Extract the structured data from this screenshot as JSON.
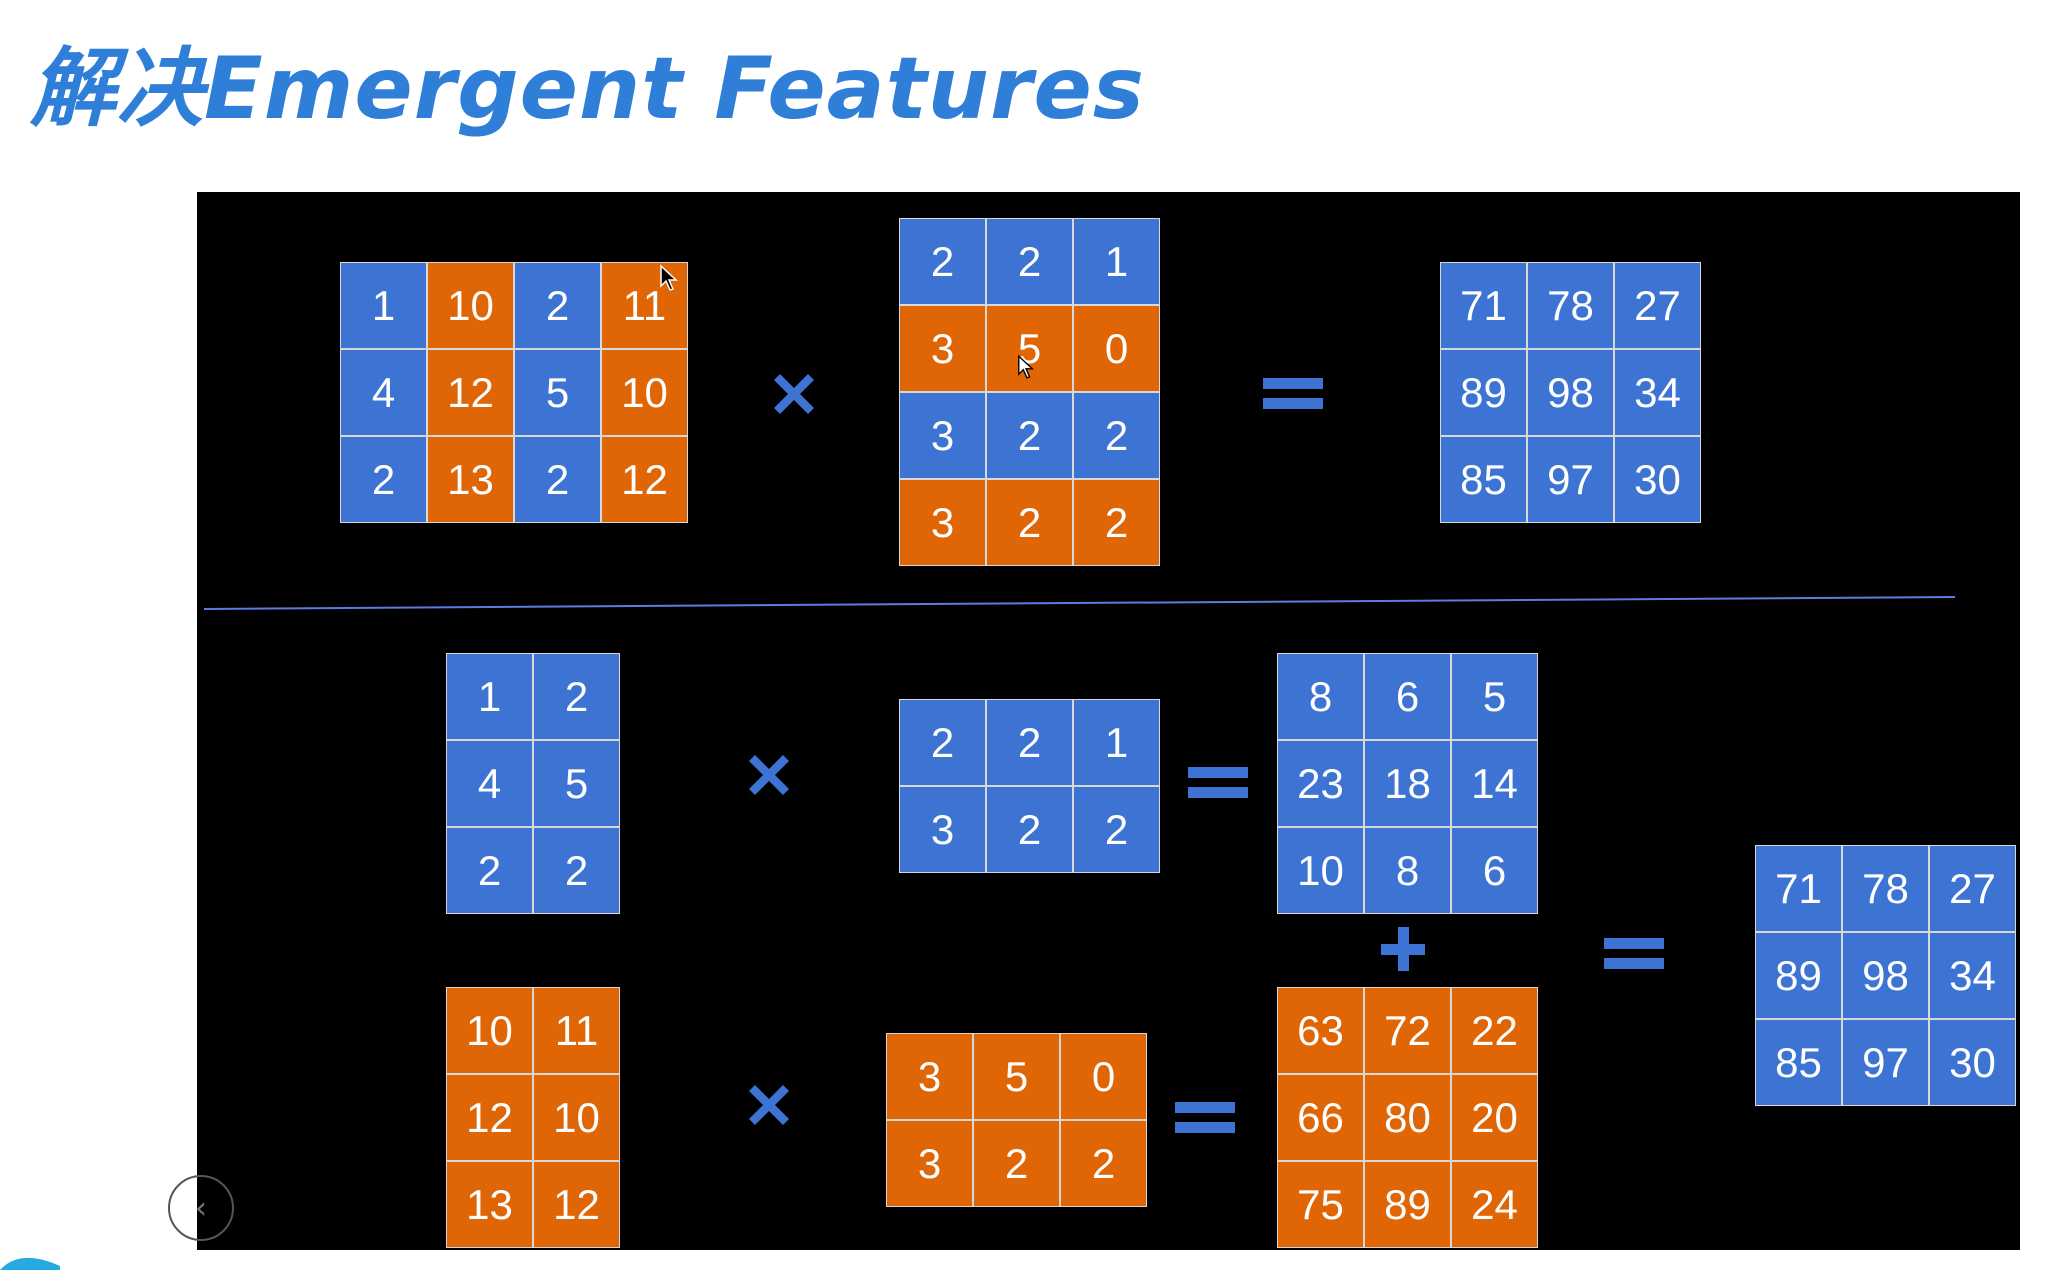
{
  "title": "解决Emergent Features",
  "colors": {
    "blue": "#3d74d4",
    "orange": "#df6505",
    "title": "#2f7fd9",
    "background": "#000000"
  },
  "top_row": {
    "input": {
      "cells": [
        [
          1,
          10,
          2,
          11
        ],
        [
          4,
          12,
          5,
          10
        ],
        [
          2,
          13,
          2,
          12
        ]
      ],
      "colors": [
        [
          "blue",
          "orange",
          "blue",
          "orange"
        ],
        [
          "blue",
          "orange",
          "blue",
          "orange"
        ],
        [
          "blue",
          "orange",
          "blue",
          "orange"
        ]
      ]
    },
    "weight": {
      "cells": [
        [
          2,
          2,
          1
        ],
        [
          3,
          5,
          0
        ],
        [
          3,
          2,
          2
        ],
        [
          3,
          2,
          2
        ]
      ],
      "colors": [
        [
          "blue",
          "blue",
          "blue"
        ],
        [
          "orange",
          "orange",
          "orange"
        ],
        [
          "blue",
          "blue",
          "blue"
        ],
        [
          "orange",
          "orange",
          "orange"
        ]
      ]
    },
    "result": {
      "cells": [
        [
          71,
          78,
          27
        ],
        [
          89,
          98,
          34
        ],
        [
          85,
          97,
          30
        ]
      ],
      "color": "blue"
    },
    "symbols": {
      "times": "multiply-icon",
      "equals": "equals-icon"
    }
  },
  "bottom_section": {
    "blue_input": {
      "cells": [
        [
          1,
          2
        ],
        [
          4,
          5
        ],
        [
          2,
          2
        ]
      ],
      "color": "blue"
    },
    "blue_weight": {
      "cells": [
        [
          2,
          2,
          1
        ],
        [
          3,
          2,
          2
        ]
      ],
      "color": "blue"
    },
    "blue_product": {
      "cells": [
        [
          8,
          6,
          5
        ],
        [
          23,
          18,
          14
        ],
        [
          10,
          8,
          6
        ]
      ],
      "color": "blue"
    },
    "orange_input": {
      "cells": [
        [
          10,
          11
        ],
        [
          12,
          10
        ],
        [
          13,
          12
        ]
      ],
      "color": "orange"
    },
    "orange_weight": {
      "cells": [
        [
          3,
          5,
          0
        ],
        [
          3,
          2,
          2
        ]
      ],
      "color": "orange"
    },
    "orange_product": {
      "cells": [
        [
          63,
          72,
          22
        ],
        [
          66,
          80,
          20
        ],
        [
          75,
          89,
          24
        ]
      ],
      "color": "orange"
    },
    "final_result": {
      "cells": [
        [
          71,
          78,
          27
        ],
        [
          89,
          98,
          34
        ],
        [
          85,
          97,
          30
        ]
      ],
      "color": "blue"
    },
    "symbols": {
      "times": "multiply-icon",
      "equals": "equals-icon",
      "plus": "plus-icon"
    }
  },
  "nav": {
    "icon": "chevron-left-icon",
    "glyph": "‹"
  }
}
